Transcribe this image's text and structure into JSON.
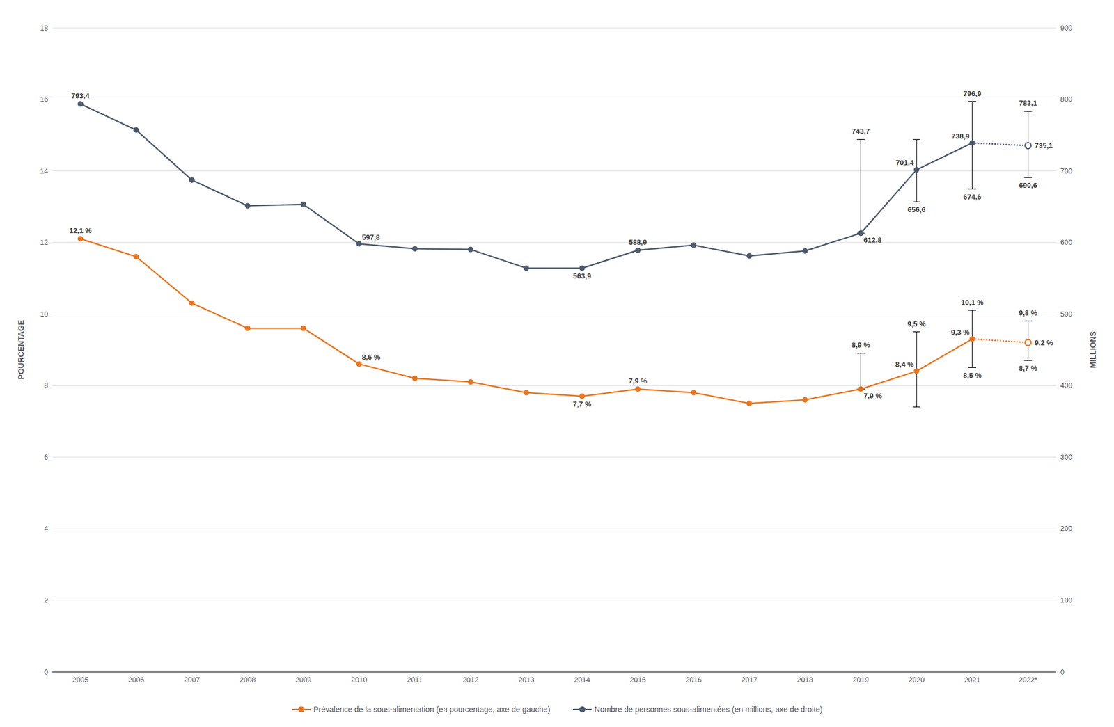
{
  "chart_data": {
    "type": "line",
    "categories": [
      "2005",
      "2006",
      "2007",
      "2008",
      "2009",
      "2010",
      "2011",
      "2012",
      "2013",
      "2014",
      "2015",
      "2016",
      "2017",
      "2018",
      "2019",
      "2020",
      "2021",
      "2022*"
    ],
    "ylabel": "POURCENTAGE",
    "y2label": "MILLIONS",
    "ylim": [
      0,
      18
    ],
    "yticks": [
      0,
      2,
      4,
      6,
      8,
      10,
      12,
      14,
      16,
      18
    ],
    "y2lim": [
      0,
      900
    ],
    "y2ticks": [
      0,
      100,
      200,
      300,
      400,
      500,
      600,
      700,
      800,
      900
    ],
    "grid": true,
    "legend": "bottom",
    "series": [
      {
        "name": "Prévalence de la sous-alimentation (en pourcentage, axe de gauche)",
        "color": "#E87722",
        "marker": "circle",
        "values": [
          12.1,
          11.6,
          10.3,
          9.6,
          9.6,
          8.6,
          8.2,
          8.1,
          7.8,
          7.7,
          7.9,
          7.8,
          7.5,
          7.6,
          7.9,
          8.4,
          9.3,
          9.2
        ],
        "errors": [
          null,
          null,
          null,
          null,
          null,
          null,
          null,
          null,
          null,
          null,
          null,
          null,
          null,
          null,
          [
            0.0,
            1.0
          ],
          [
            1.0,
            1.1
          ],
          [
            0.8,
            0.8
          ],
          [
            0.5,
            0.6
          ]
        ]
      },
      {
        "name": "Nombre de personnes sous-alimentées (en millions, axe de droite)",
        "color": "#4D5A6B",
        "marker": "circle",
        "axis": "y2",
        "values": [
          793.4,
          757.0,
          687.0,
          651.0,
          653.0,
          597.8,
          591.0,
          590.0,
          563.9,
          563.9,
          588.9,
          596.0,
          581.0,
          588.0,
          612.8,
          701.4,
          738.9,
          735.1
        ],
        "errors": [
          null,
          null,
          null,
          null,
          null,
          null,
          null,
          null,
          null,
          null,
          null,
          null,
          null,
          null,
          [
            0.0,
            130.9
          ],
          [
            44.8,
            42.3
          ],
          [
            64.3,
            58.0
          ],
          [
            44.5,
            47.9
          ]
        ]
      }
    ],
    "annotations": [
      {
        "x": "2005",
        "y": 12.1,
        "text": "12,1 %"
      },
      {
        "x": "2010",
        "y": 8.6,
        "text": "8,6 %"
      },
      {
        "x": "2014",
        "y": 7.7,
        "text": "7,7 %"
      },
      {
        "x": "2015",
        "y": 7.9,
        "text": "7,9 %"
      },
      {
        "x": "2019",
        "y": 7.9,
        "text": "7,9 %"
      },
      {
        "x": "2020",
        "y": 8.4,
        "text": "8,4 %"
      },
      {
        "x": "2021",
        "y": 9.3,
        "text": "9,3 %"
      },
      {
        "x": "2022*",
        "y": 9.2,
        "text": "9,2 %"
      },
      {
        "x": "2019",
        "y": 8.9,
        "text": "8,9 %"
      },
      {
        "x": "2021",
        "y": 10.1,
        "text": "10,1 %"
      },
      {
        "x": "2021",
        "y": 8.5,
        "text": "8,5 %"
      },
      {
        "x": "2022*",
        "y": 9.8,
        "text": "9,8 %"
      },
      {
        "x": "2022*",
        "y": 8.7,
        "text": "8,7 %"
      },
      {
        "x": "2020",
        "y": 9.5,
        "text": "9,5 %"
      },
      {
        "x": "2005",
        "y": 793.4,
        "text": "793,4",
        "axis": "y2"
      },
      {
        "x": "2010",
        "y": 597.8,
        "text": "597,8",
        "axis": "y2"
      },
      {
        "x": "2014",
        "y": 563.9,
        "text": "563,9",
        "axis": "y2"
      },
      {
        "x": "2015",
        "y": 588.9,
        "text": "588,9",
        "axis": "y2"
      },
      {
        "x": "2019",
        "y": 612.8,
        "text": "612,8",
        "axis": "y2"
      },
      {
        "x": "2020",
        "y": 701.4,
        "text": "701,4",
        "axis": "y2"
      },
      {
        "x": "2021",
        "y": 738.9,
        "text": "738,9",
        "axis": "y2"
      },
      {
        "x": "2022*",
        "y": 735.1,
        "text": "735,1",
        "axis": "y2"
      },
      {
        "x": "2019",
        "y": 743.7,
        "text": "743,7",
        "axis": "y2"
      },
      {
        "x": "2020",
        "y": 656.6,
        "text": "656,6",
        "axis": "y2"
      },
      {
        "x": "2021",
        "y": 796.9,
        "text": "796,9",
        "axis": "y2"
      },
      {
        "x": "2021",
        "y": 674.6,
        "text": "674,6",
        "axis": "y2"
      },
      {
        "x": "2022*",
        "y": 783.1,
        "text": "783,1",
        "axis": "y2"
      },
      {
        "x": "2022*",
        "y": 690.6,
        "text": "690,6",
        "axis": "y2"
      }
    ]
  }
}
